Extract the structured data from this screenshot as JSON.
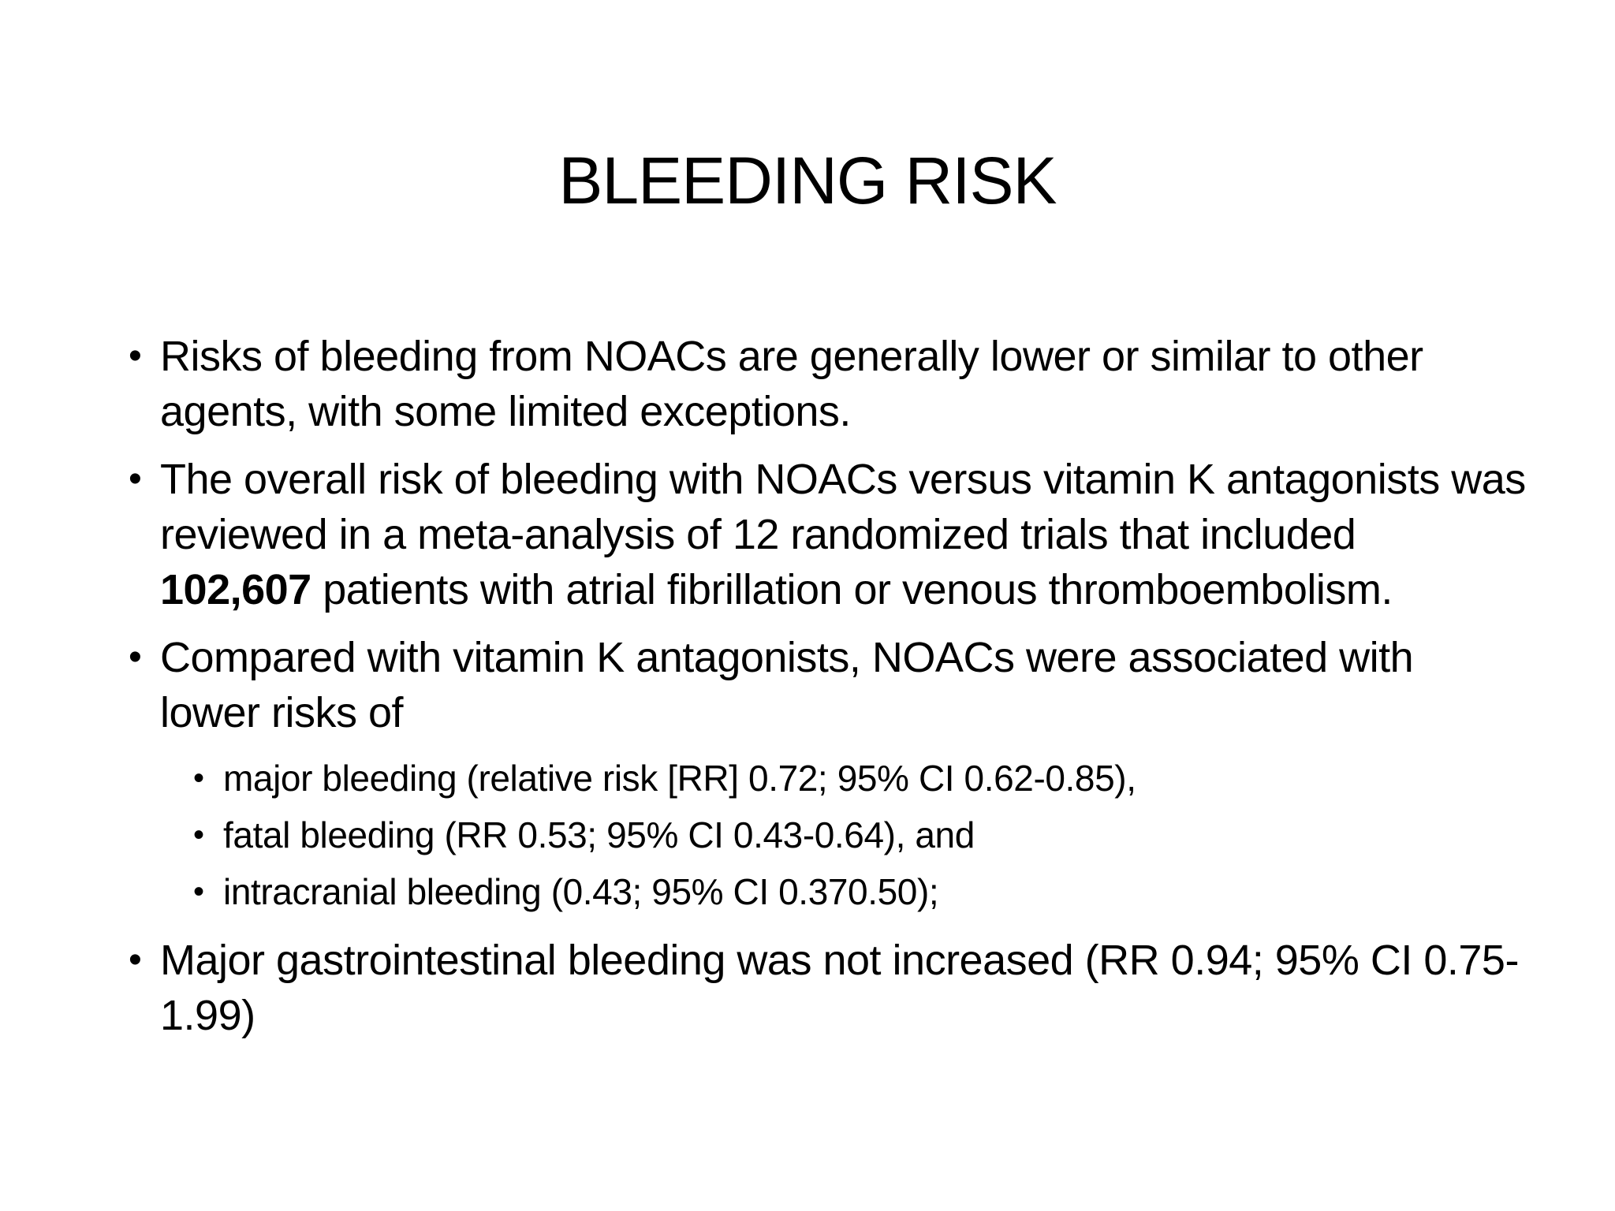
{
  "slide": {
    "title": "BLEEDING RISK",
    "bullet_char": "•",
    "colors": {
      "background": "#ffffff",
      "text": "#000000"
    },
    "bullets": [
      {
        "level": 1,
        "lines": [
          "Risks of bleeding from NOACs are generally lower or similar to other",
          "agents, with some limited exceptions."
        ]
      },
      {
        "level": 1,
        "lines": [
          "The overall risk of bleeding with NOACs versus vitamin K antagonists was",
          "reviewed in a meta-analysis of 12 randomized trials that included"
        ],
        "line3": {
          "bold": "102,607",
          "rest": " patients with atrial fibrillation or venous thromboembolism."
        }
      },
      {
        "level": 1,
        "lines": [
          "Compared with vitamin K antagonists, NOACs were associated with",
          "lower risks of"
        ]
      },
      {
        "level": 2,
        "lines": [
          "major bleeding (relative risk [RR] 0.72; 95% CI 0.62-0.85),"
        ]
      },
      {
        "level": 2,
        "lines": [
          "fatal bleeding (RR 0.53; 95% CI 0.43-0.64), and"
        ]
      },
      {
        "level": 2,
        "lines": [
          "intracranial bleeding (0.43; 95% CI 0.370.50);"
        ]
      },
      {
        "level": 1,
        "lines": [
          "Major gastrointestinal bleeding was not increased (RR 0.94; 95% CI 0.75-",
          "1.99)"
        ]
      }
    ]
  }
}
